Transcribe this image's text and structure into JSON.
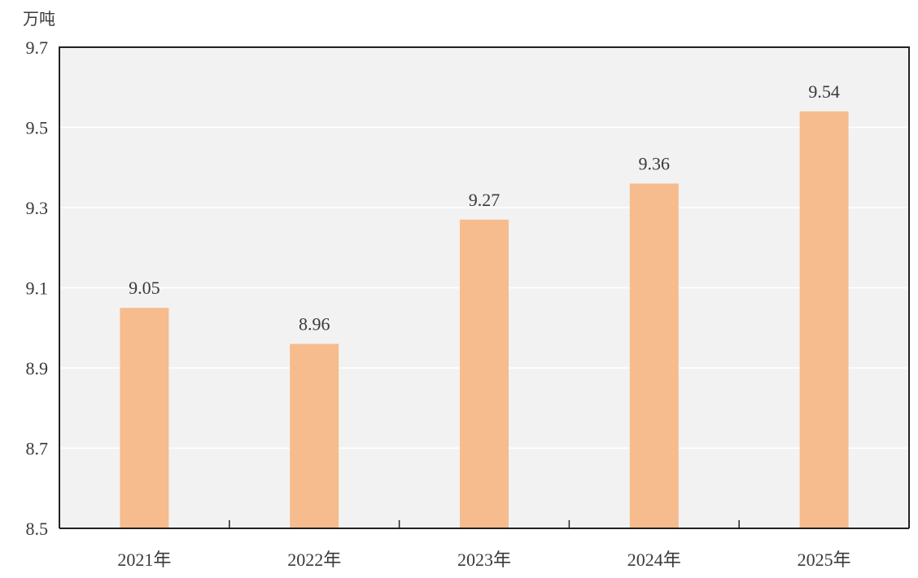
{
  "chart_data": {
    "type": "bar",
    "unit_label": "万吨",
    "categories": [
      "2021年",
      "2022年",
      "2023年",
      "2024年",
      "2025年"
    ],
    "values": [
      9.05,
      8.96,
      9.27,
      9.36,
      9.54
    ],
    "value_labels": [
      "9.05",
      "8.96",
      "9.27",
      "9.36",
      "9.54"
    ],
    "ylim": [
      8.5,
      9.7
    ],
    "yticks": [
      8.5,
      8.7,
      8.9,
      9.1,
      9.3,
      9.5,
      9.7
    ],
    "ytick_labels": [
      "8.5",
      "8.7",
      "8.9",
      "9.1",
      "9.3",
      "9.5",
      "9.7"
    ],
    "grid": true,
    "legend": "none",
    "colors": {
      "bar": "#f6bc8e",
      "plot_background": "#f2f2f2",
      "grid": "#ffffff",
      "axis": "#222222"
    }
  }
}
